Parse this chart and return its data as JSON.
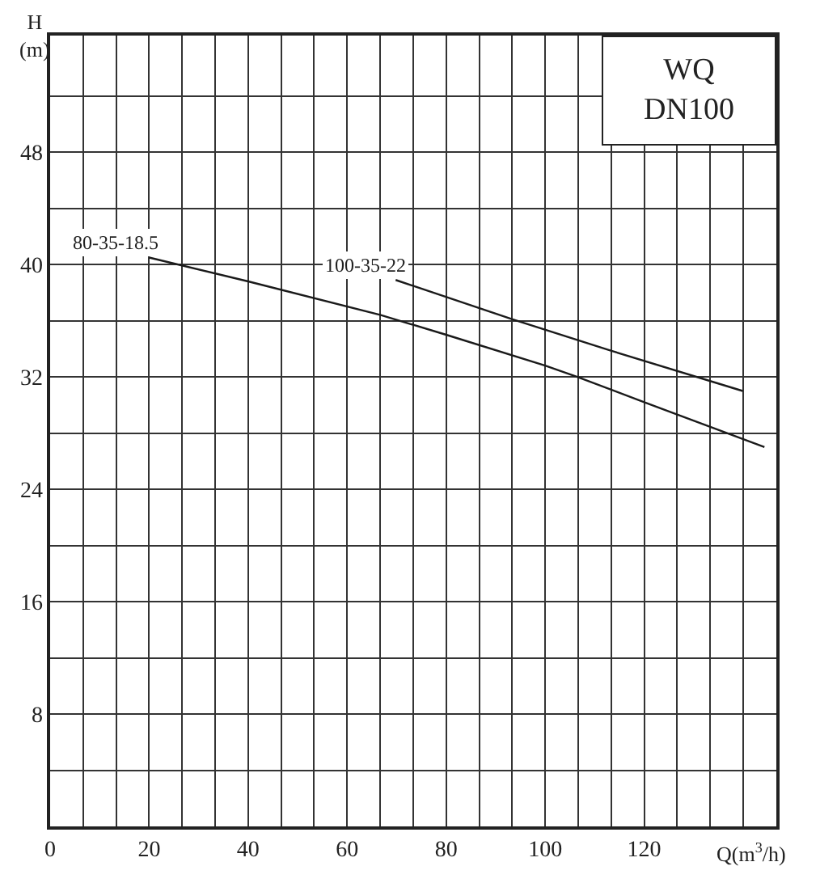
{
  "chart_data": {
    "type": "line",
    "title": "WQ\nDN100",
    "xlabel": "Q(m$^{3}$/h)",
    "ylabel": "H\n(m)",
    "xlim": [
      0,
      146.7
    ],
    "ylim": [
      0,
      56.3
    ],
    "xticks": [
      0,
      {
        "value": 6.67,
        "label": null
      },
      {
        "value": 13.33,
        "label": null
      },
      20,
      {
        "value": 26.67,
        "label": null
      },
      {
        "value": 33.33,
        "label": null
      },
      40,
      {
        "value": 46.67,
        "label": null
      },
      {
        "value": 53.33,
        "label": null
      },
      60,
      {
        "value": 66.67,
        "label": null
      },
      {
        "value": 73.33,
        "label": null
      },
      80,
      {
        "value": 86.67,
        "label": null
      },
      {
        "value": 93.33,
        "label": null
      },
      100,
      {
        "value": 106.67,
        "label": null
      },
      {
        "value": 113.33,
        "label": null
      },
      120,
      {
        "value": 126.67,
        "label": null
      },
      {
        "value": 133.33,
        "label": null
      },
      {
        "value": 140,
        "label": null
      }
    ],
    "yticks": [
      {
        "value": 4,
        "label": null
      },
      8,
      {
        "value": 12,
        "label": null
      },
      16,
      {
        "value": 20,
        "label": null
      },
      24,
      {
        "value": 28,
        "label": null
      },
      32,
      {
        "value": 36,
        "label": null
      },
      40,
      {
        "value": 44,
        "label": null
      },
      48,
      {
        "value": 52,
        "label": null
      }
    ],
    "grid": true,
    "legend": false,
    "marker": "none",
    "line_style": "solid",
    "series": [
      {
        "name": "80-35-18.5",
        "color": "#1a1a1a",
        "x": [
          20,
          40,
          66.8,
          80,
          100,
          106.5,
          120,
          144.3
        ],
        "values": [
          40.5,
          38.8,
          36.4,
          35.0,
          32.8,
          32.0,
          30.2,
          27.0
        ]
      },
      {
        "name": "100-35-22",
        "color": "#1a1a1a",
        "x": [
          69.8,
          93.4,
          113,
          139.9
        ],
        "values": [
          38.9,
          36.1,
          33.9,
          31.0
        ]
      }
    ]
  }
}
